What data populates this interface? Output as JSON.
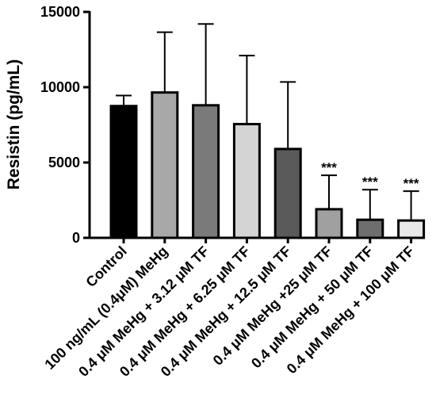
{
  "chart_data": {
    "type": "bar",
    "ylabel": "Resistin (pg/mL)",
    "ylim": [
      0,
      15000
    ],
    "yticks": [
      0,
      5000,
      10000,
      15000
    ],
    "categories": [
      "Control",
      "100 ng/mL (0.4μM) MeHg",
      "0.4 μM MeHg + 3.12 μM TF",
      "0.4 μM MeHg + 6.25 μM TF",
      "0.4 μM MeHg + 12.5 μM TF",
      "0.4 μM MeHg +25 μM TF",
      "0.4 μM MeHg + 50 μM TF",
      "0.4 μM MeHg + 100 μM TF"
    ],
    "values": [
      8750,
      9650,
      8800,
      7550,
      5900,
      1900,
      1200,
      1150
    ],
    "error_upper": [
      700,
      4000,
      5400,
      4550,
      4450,
      2250,
      2000,
      1950
    ],
    "significance": [
      "",
      "",
      "",
      "",
      "",
      "***",
      "***",
      "***"
    ],
    "bar_colors": [
      "#000000",
      "#a8a8a8",
      "#7a7a7a",
      "#d4d4d4",
      "#5a5a5a",
      "#a0a0a0",
      "#6e6e6e",
      "#e8e8e8"
    ],
    "grid": false,
    "legend": "none"
  }
}
